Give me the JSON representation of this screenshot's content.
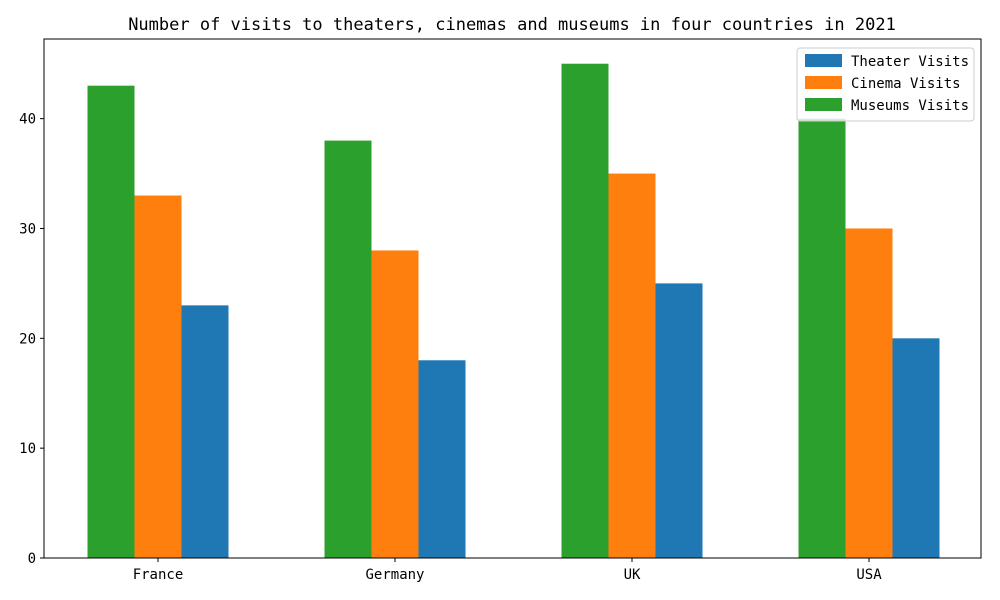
{
  "chart_data": {
    "type": "bar",
    "title": "Number of visits to theaters, cinemas and museums in four countries in 2021",
    "xlabel": "",
    "ylabel": "",
    "categories": [
      "France",
      "Germany",
      "UK",
      "USA"
    ],
    "series": [
      {
        "name": "Theater Visits",
        "values": [
          23,
          18,
          25,
          20
        ],
        "color": "#1f77b4"
      },
      {
        "name": "Cinema Visits",
        "values": [
          33,
          28,
          35,
          30
        ],
        "color": "#ff7f0e"
      },
      {
        "name": "Museums Visits",
        "values": [
          43,
          38,
          45,
          40
        ],
        "color": "#2ca02c"
      }
    ],
    "bar_order": [
      "Museums Visits",
      "Cinema Visits",
      "Theater Visits"
    ],
    "ylim": [
      0,
      47.25
    ],
    "yticks": [
      0,
      10,
      20,
      30,
      40
    ],
    "grid": false,
    "legend": "top-right"
  }
}
